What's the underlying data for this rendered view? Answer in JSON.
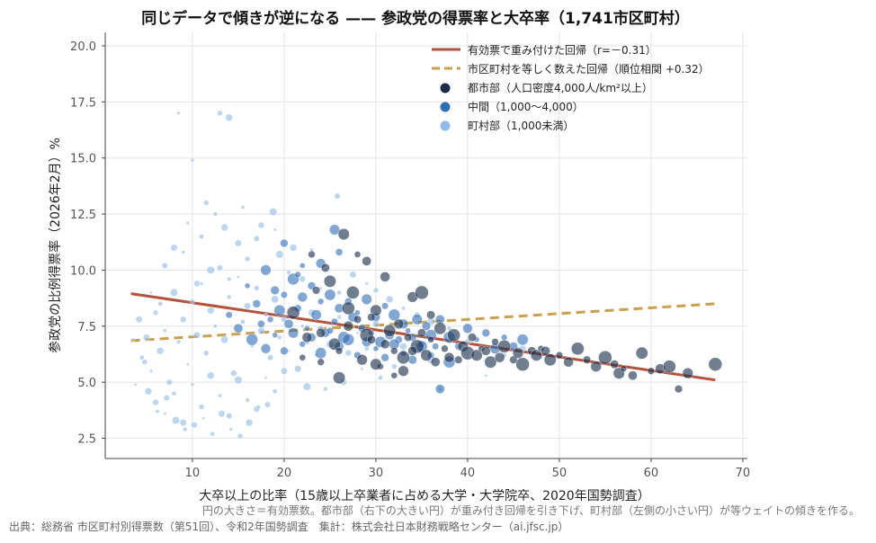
{
  "chart_data": {
    "type": "scatter",
    "title": "同じデータで傾きが逆になる —— 参政党の得票率と大卒率（1,741市区町村）",
    "xlabel": "大卒以上の比率（15歳以上卒業者に占める大学・大学院卒、2020年国勢調査）",
    "ylabel": "参政党の比例得票率（2026年2月）%",
    "xlim": [
      0.5,
      70.5
    ],
    "ylim": [
      1.6,
      20.6
    ],
    "x_ticks": [
      10,
      20,
      30,
      40,
      50,
      60,
      70
    ],
    "x_tick_labels": [
      "10",
      "20",
      "30",
      "40",
      "50",
      "60",
      "70"
    ],
    "y_ticks": [
      2.5,
      5.0,
      7.5,
      10.0,
      12.5,
      15.0,
      17.5,
      20.0
    ],
    "y_tick_labels": [
      "2.5",
      "5.0",
      "7.5",
      "10.0",
      "12.5",
      "15.0",
      "17.5",
      "20.0"
    ],
    "grid": true,
    "legend_position": "top-right",
    "colors": {
      "urban": "#1a2e4a",
      "middle": "#2f6db5",
      "rural": "#8fbbe6",
      "weighted_line": "#b5523b",
      "unweighted_line": "#c9a04e"
    },
    "series": [
      {
        "name": "有効票で重み付けた回帰（r=－0.31）",
        "kind": "line",
        "style": "solid",
        "points": [
          [
            3.3,
            8.95
          ],
          [
            67,
            5.1
          ]
        ]
      },
      {
        "name": "市区町村を等しく数えた回帰（順位相関 +0.32）",
        "kind": "line",
        "style": "dashed",
        "points": [
          [
            3.3,
            6.85
          ],
          [
            67,
            8.5
          ]
        ]
      },
      {
        "name": "都市部（人口密度4,000人/km²以上）",
        "kind": "scatter",
        "group": "urban",
        "points": [
          [
            22,
            6.1
          ],
          [
            24,
            7.2
          ],
          [
            25.5,
            6.7
          ],
          [
            26,
            6.4
          ],
          [
            27,
            7.5
          ],
          [
            27.5,
            9.0
          ],
          [
            28,
            7.8
          ],
          [
            28.5,
            6.0
          ],
          [
            29,
            7.1
          ],
          [
            29.5,
            6.9
          ],
          [
            30,
            8.2
          ],
          [
            30.5,
            5.7
          ],
          [
            31,
            6.7
          ],
          [
            31.5,
            7.3
          ],
          [
            32,
            6.4
          ],
          [
            32.5,
            7.6
          ],
          [
            33,
            6.1
          ],
          [
            33.5,
            7.0
          ],
          [
            34,
            8.8
          ],
          [
            34.5,
            6.6
          ],
          [
            35,
            7.2
          ],
          [
            35.5,
            6.2
          ],
          [
            36,
            6.9
          ],
          [
            36.5,
            5.9
          ],
          [
            37,
            7.4
          ],
          [
            37.5,
            6.5
          ],
          [
            38,
            6.1
          ],
          [
            38.5,
            7.1
          ],
          [
            39,
            6.0
          ],
          [
            39.5,
            6.6
          ],
          [
            40,
            6.3
          ],
          [
            40.5,
            7.0
          ],
          [
            41,
            6.2
          ],
          [
            41.5,
            6.5
          ],
          [
            42,
            6.4
          ],
          [
            42.5,
            5.9
          ],
          [
            43,
            6.8
          ],
          [
            43.5,
            6.1
          ],
          [
            44,
            6.6
          ],
          [
            45,
            6.0
          ],
          [
            45.5,
            6.3
          ],
          [
            46,
            5.8
          ],
          [
            47,
            6.4
          ],
          [
            47.5,
            6.2
          ],
          [
            48,
            6.5
          ],
          [
            48.5,
            6.4
          ],
          [
            49,
            6.0
          ],
          [
            50,
            6.2
          ],
          [
            51,
            5.9
          ],
          [
            52,
            6.5
          ],
          [
            53,
            6.0
          ],
          [
            54,
            5.7
          ],
          [
            55,
            6.1
          ],
          [
            56,
            5.8
          ],
          [
            56.5,
            5.4
          ],
          [
            57,
            5.6
          ],
          [
            58,
            5.3
          ],
          [
            59,
            6.3
          ],
          [
            60,
            5.5
          ],
          [
            61,
            5.6
          ],
          [
            62,
            5.7
          ],
          [
            63,
            4.7
          ],
          [
            64,
            5.4
          ],
          [
            67,
            5.8
          ],
          [
            24.5,
            10.1
          ],
          [
            26.5,
            11.6
          ],
          [
            28,
            10.7
          ],
          [
            29,
            10.4
          ],
          [
            25,
            9.5
          ],
          [
            23,
            10.7
          ],
          [
            31,
            9.7
          ],
          [
            27,
            8.3
          ],
          [
            29.5,
            7.9
          ],
          [
            33,
            5.5
          ],
          [
            35,
            9.0
          ],
          [
            36,
            8.0
          ],
          [
            30,
            5.8
          ],
          [
            32,
            5.3
          ],
          [
            34,
            6.4
          ],
          [
            26,
            5.2
          ],
          [
            24,
            5.9
          ],
          [
            22.5,
            7.0
          ],
          [
            21,
            8.1
          ],
          [
            23.5,
            9.1
          ]
        ]
      },
      {
        "name": "中間（1,000〜4,000）",
        "kind": "scatter",
        "group": "middle",
        "points": [
          [
            16,
            9.3
          ],
          [
            17,
            8.5
          ],
          [
            18,
            10.0
          ],
          [
            18.5,
            7.8
          ],
          [
            19,
            9.1
          ],
          [
            19.5,
            8.2
          ],
          [
            20,
            8.9
          ],
          [
            20.5,
            7.6
          ],
          [
            21,
            9.6
          ],
          [
            21.5,
            8.3
          ],
          [
            22,
            8.8
          ],
          [
            22.5,
            7.4
          ],
          [
            23,
            9.3
          ],
          [
            23.5,
            8.0
          ],
          [
            24,
            8.6
          ],
          [
            24.5,
            7.2
          ],
          [
            25,
            8.9
          ],
          [
            25.5,
            7.7
          ],
          [
            26,
            8.3
          ],
          [
            26.5,
            7.0
          ],
          [
            27,
            8.6
          ],
          [
            27.5,
            7.9
          ],
          [
            28,
            8.1
          ],
          [
            28.5,
            7.4
          ],
          [
            29,
            8.7
          ],
          [
            29.5,
            7.2
          ],
          [
            30,
            7.9
          ],
          [
            30.5,
            6.8
          ],
          [
            31,
            8.4
          ],
          [
            31.5,
            7.1
          ],
          [
            32,
            8.0
          ],
          [
            32.5,
            6.9
          ],
          [
            33,
            7.6
          ],
          [
            33.5,
            7.3
          ],
          [
            34,
            7.0
          ],
          [
            34.5,
            7.8
          ],
          [
            35,
            6.7
          ],
          [
            35.5,
            7.5
          ],
          [
            36,
            7.1
          ],
          [
            36.5,
            6.6
          ],
          [
            37,
            7.8
          ],
          [
            38,
            7.0
          ],
          [
            39,
            6.6
          ],
          [
            40,
            7.4
          ],
          [
            41,
            6.9
          ],
          [
            42,
            7.2
          ],
          [
            43,
            6.5
          ],
          [
            44,
            7.0
          ],
          [
            45,
            6.6
          ],
          [
            46,
            6.9
          ],
          [
            14,
            8.0
          ],
          [
            15,
            7.4
          ],
          [
            16.5,
            6.9
          ],
          [
            17.5,
            7.6
          ],
          [
            18,
            6.5
          ],
          [
            19,
            7.1
          ],
          [
            20,
            6.4
          ],
          [
            21,
            7.2
          ],
          [
            22,
            6.7
          ],
          [
            23,
            7.0
          ],
          [
            24,
            6.3
          ],
          [
            25,
            7.3
          ],
          [
            26,
            6.6
          ],
          [
            27,
            6.9
          ],
          [
            28,
            6.2
          ],
          [
            29,
            6.8
          ],
          [
            30,
            6.5
          ],
          [
            31,
            6.1
          ],
          [
            32,
            6.7
          ],
          [
            33,
            6.3
          ],
          [
            34,
            6.0
          ],
          [
            35,
            6.6
          ],
          [
            36,
            6.2
          ],
          [
            37,
            4.7
          ],
          [
            38,
            5.9
          ],
          [
            26,
            10.8
          ],
          [
            24,
            10.3
          ],
          [
            22,
            10.2
          ],
          [
            20,
            11.2
          ],
          [
            25.5,
            11.8
          ],
          [
            21.5,
            9.8
          ]
        ]
      },
      {
        "name": "町村部（1,000未満）",
        "kind": "scatter",
        "group": "rural",
        "points": [
          [
            3.8,
            4.9
          ],
          [
            4.5,
            6.1
          ],
          [
            5,
            7.0
          ],
          [
            5.5,
            5.5
          ],
          [
            6,
            8.1
          ],
          [
            6.5,
            6.4
          ],
          [
            7,
            7.3
          ],
          [
            7.5,
            5.0
          ],
          [
            8,
            9.0
          ],
          [
            8.5,
            6.8
          ],
          [
            9,
            7.8
          ],
          [
            9.5,
            5.8
          ],
          [
            10,
            8.6
          ],
          [
            10.5,
            7.1
          ],
          [
            11,
            9.4
          ],
          [
            11.5,
            6.3
          ],
          [
            12,
            8.2
          ],
          [
            12.5,
            7.5
          ],
          [
            13,
            10.1
          ],
          [
            13.5,
            6.9
          ],
          [
            14,
            8.8
          ],
          [
            14.5,
            5.4
          ],
          [
            15,
            9.7
          ],
          [
            15.5,
            7.7
          ],
          [
            16,
            8.4
          ],
          [
            16.5,
            6.6
          ],
          [
            17,
            9.2
          ],
          [
            17.5,
            7.3
          ],
          [
            18,
            8.0
          ],
          [
            18.5,
            6.1
          ],
          [
            19,
            8.7
          ],
          [
            19.5,
            7.0
          ],
          [
            20,
            7.8
          ],
          [
            20.5,
            6.4
          ],
          [
            21,
            8.3
          ],
          [
            21.5,
            5.6
          ],
          [
            22,
            7.5
          ],
          [
            22.5,
            6.8
          ],
          [
            23,
            8.1
          ],
          [
            23.5,
            6.2
          ],
          [
            24,
            7.4
          ],
          [
            25,
            6.7
          ],
          [
            26,
            7.9
          ],
          [
            27,
            6.3
          ],
          [
            28,
            7.2
          ],
          [
            29,
            6.5
          ],
          [
            30,
            7.6
          ],
          [
            31,
            6.9
          ],
          [
            32,
            5.7
          ],
          [
            33,
            6.6
          ],
          [
            34,
            7.1
          ],
          [
            35,
            6.4
          ],
          [
            36,
            6.0
          ],
          [
            37,
            4.7
          ],
          [
            6,
            4.1
          ],
          [
            7,
            3.6
          ],
          [
            8,
            4.5
          ],
          [
            9,
            3.2
          ],
          [
            10,
            4.9
          ],
          [
            11,
            3.9
          ],
          [
            12,
            5.3
          ],
          [
            13,
            4.4
          ],
          [
            14,
            3.5
          ],
          [
            15,
            5.1
          ],
          [
            16,
            4.2
          ],
          [
            17,
            3.8
          ],
          [
            18,
            5.2
          ],
          [
            19,
            4.6
          ],
          [
            20,
            5.5
          ],
          [
            8.5,
            17.0
          ],
          [
            13,
            17.0
          ],
          [
            14,
            16.8
          ],
          [
            10,
            14.9
          ],
          [
            25.8,
            13.3
          ],
          [
            18.8,
            12.6
          ],
          [
            12.5,
            12.5
          ],
          [
            17.5,
            12.0
          ],
          [
            19,
            11.8
          ],
          [
            11,
            11.5
          ],
          [
            15,
            11.2
          ],
          [
            9,
            10.8
          ],
          [
            16,
            10.5
          ],
          [
            21,
            11.0
          ],
          [
            23,
            10.9
          ],
          [
            7,
            10.2
          ],
          [
            12,
            10.0
          ],
          [
            14,
            9.6
          ],
          [
            10.5,
            9.4
          ],
          [
            5.5,
            9.0
          ],
          [
            6.5,
            8.5
          ],
          [
            4.2,
            7.8
          ],
          [
            3.5,
            6.9
          ],
          [
            4.8,
            5.9
          ],
          [
            5.2,
            4.6
          ],
          [
            6.2,
            3.7
          ],
          [
            7.2,
            4.3
          ],
          [
            8.2,
            3.3
          ],
          [
            9.2,
            2.9
          ],
          [
            10.2,
            3.1
          ],
          [
            11.2,
            3.4
          ],
          [
            12.2,
            2.7
          ],
          [
            13.2,
            3.6
          ],
          [
            14.2,
            2.9
          ],
          [
            15.2,
            2.6
          ],
          [
            16.2,
            3.2
          ],
          [
            17.2,
            3.9
          ],
          [
            18.2,
            4.0
          ],
          [
            22.5,
            4.8
          ],
          [
            24.5,
            4.7
          ],
          [
            26.5,
            5.0
          ],
          [
            28.5,
            5.6
          ],
          [
            30.5,
            5.2
          ],
          [
            8,
            11.0
          ],
          [
            9.5,
            12.1
          ],
          [
            11.5,
            13.0
          ],
          [
            13.5,
            11.9
          ],
          [
            15.5,
            12.8
          ],
          [
            17,
            11.4
          ],
          [
            19.5,
            10.7
          ],
          [
            20.5,
            9.9
          ],
          [
            22,
            9.6
          ],
          [
            24,
            9.2
          ],
          [
            26,
            9.0
          ],
          [
            27.5,
            9.8
          ],
          [
            29,
            9.4
          ],
          [
            30,
            9.1
          ],
          [
            31.5,
            8.7
          ],
          [
            33,
            8.3
          ],
          [
            34.5,
            8.0
          ],
          [
            36,
            7.7
          ],
          [
            38,
            7.4
          ],
          [
            40,
            6.8
          ],
          [
            42,
            5.3
          ],
          [
            44,
            6.2
          ],
          [
            46,
            6.5
          ],
          [
            48,
            6.1
          ]
        ]
      }
    ]
  },
  "note": "円の大きさ＝有効票数。都市部（右下の大きい円）が重み付き回帰を引き下げ、町村部（左側の小さい円）が等ウェイトの傾きを作る。",
  "source": "出典：総務省 市区町村別得票数（第51回）、令和2年国勢調査　集計：株式会社日本財務戦略センター（ai.jfsc.jp）"
}
